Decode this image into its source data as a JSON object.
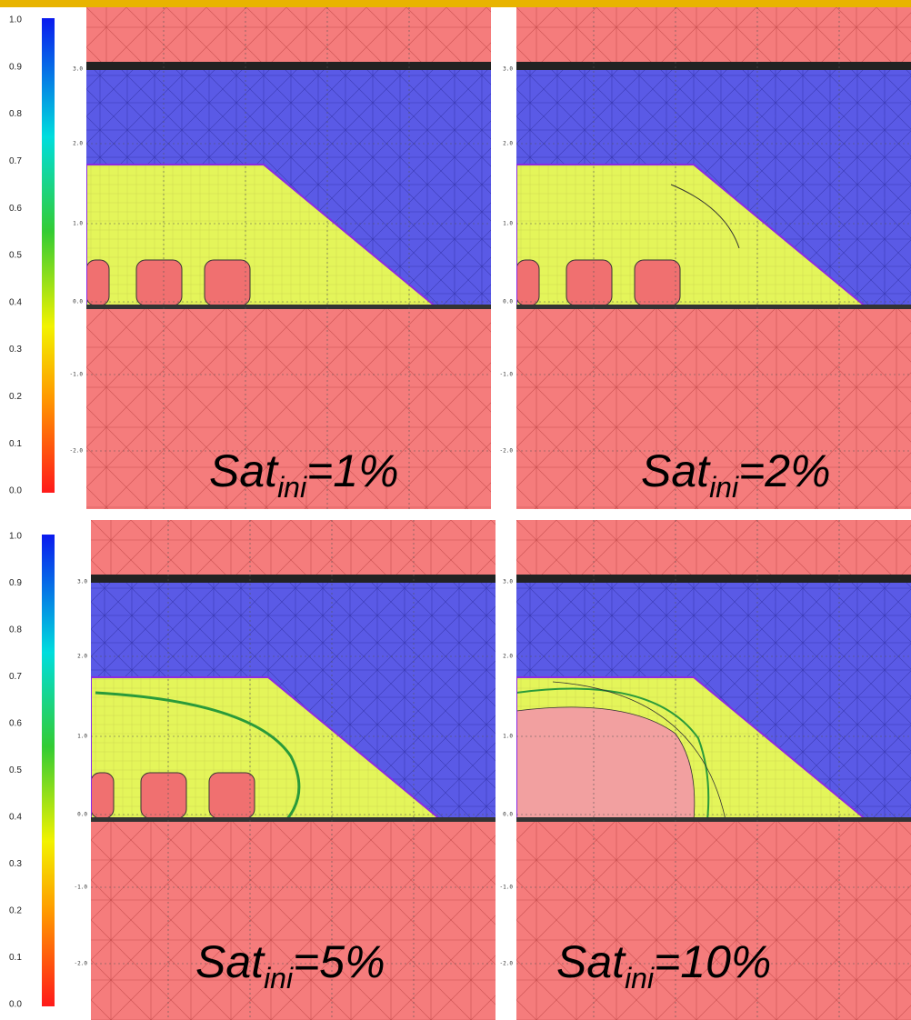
{
  "colorbars": [
    {
      "ticks": [
        "1.0",
        "0.9",
        "0.8",
        "0.7",
        "0.6",
        "0.5",
        "0.4",
        "0.3",
        "0.2",
        "0.1",
        "0.0"
      ]
    },
    {
      "ticks": [
        "1.0",
        "0.9",
        "0.8",
        "0.7",
        "0.6",
        "0.5",
        "0.4",
        "0.3",
        "0.2",
        "0.1",
        "0.0"
      ]
    }
  ],
  "panels": [
    {
      "label": {
        "base": "Sat",
        "sub": "ini",
        "value": "=1%"
      },
      "y_axis_labels": [
        "3.0",
        "2.0",
        "1.0",
        "0.0",
        "-1.0",
        "-2.0"
      ]
    },
    {
      "label": {
        "base": "Sat",
        "sub": "ini",
        "value": "=2%"
      },
      "y_axis_labels": [
        "3.0",
        "2.0",
        "1.0",
        "0.0",
        "-1.0",
        "-2.0"
      ]
    },
    {
      "label": {
        "base": "Sat",
        "sub": "ini",
        "value": "=5%"
      },
      "y_axis_labels": [
        "3.0",
        "2.0",
        "1.0",
        "0.0",
        "-1.0",
        "-2.0"
      ]
    },
    {
      "label": {
        "base": "Sat",
        "sub": "ini",
        "value": "=10%"
      },
      "y_axis_labels": [
        "3.0",
        "2.0",
        "1.0",
        "0.0",
        "-1.0",
        "-2.0"
      ]
    }
  ]
}
